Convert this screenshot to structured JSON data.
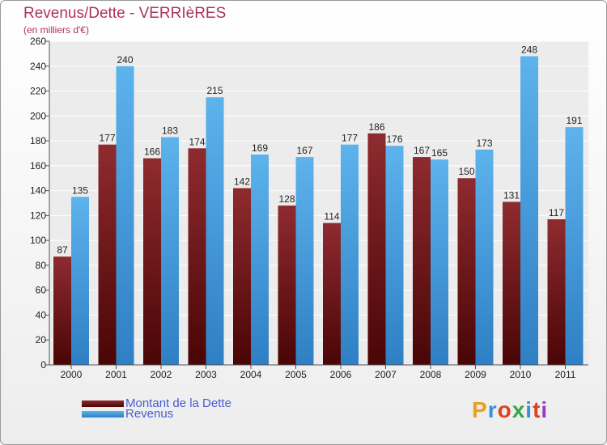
{
  "header": {
    "title": "Revenus/Dette - VERRIèRES",
    "subtitle": "(en milliers d'€)"
  },
  "logo": {
    "text": "Proxiti",
    "colors": [
      "#e8a020",
      "#3a8fd8",
      "#e04020",
      "#2ea84a",
      "#3a8fd8",
      "#e04020",
      "#9a3bc8"
    ]
  },
  "colors": {
    "dette": "#7b2025",
    "revenus": "#4fa6e6",
    "title": "#b03060",
    "legend_text": "#4a5cd0"
  },
  "chart_data": {
    "type": "bar",
    "title": "Revenus/Dette - VERRIèRES",
    "subtitle": "(en milliers d'€)",
    "categories": [
      "2000",
      "2001",
      "2002",
      "2003",
      "2004",
      "2005",
      "2006",
      "2007",
      "2008",
      "2009",
      "2010",
      "2011"
    ],
    "series": [
      {
        "name": "Montant de la Dette",
        "values": [
          87,
          177,
          166,
          174,
          142,
          128,
          114,
          186,
          167,
          150,
          131,
          117
        ]
      },
      {
        "name": "Revenus",
        "values": [
          135,
          240,
          183,
          215,
          169,
          167,
          177,
          176,
          165,
          173,
          248,
          191
        ]
      }
    ],
    "ylim": [
      0,
      260
    ],
    "yticks": [
      0,
      20,
      40,
      60,
      80,
      100,
      120,
      140,
      160,
      180,
      200,
      220,
      240,
      260
    ],
    "grid": true,
    "legend_position": "bottom-left"
  }
}
